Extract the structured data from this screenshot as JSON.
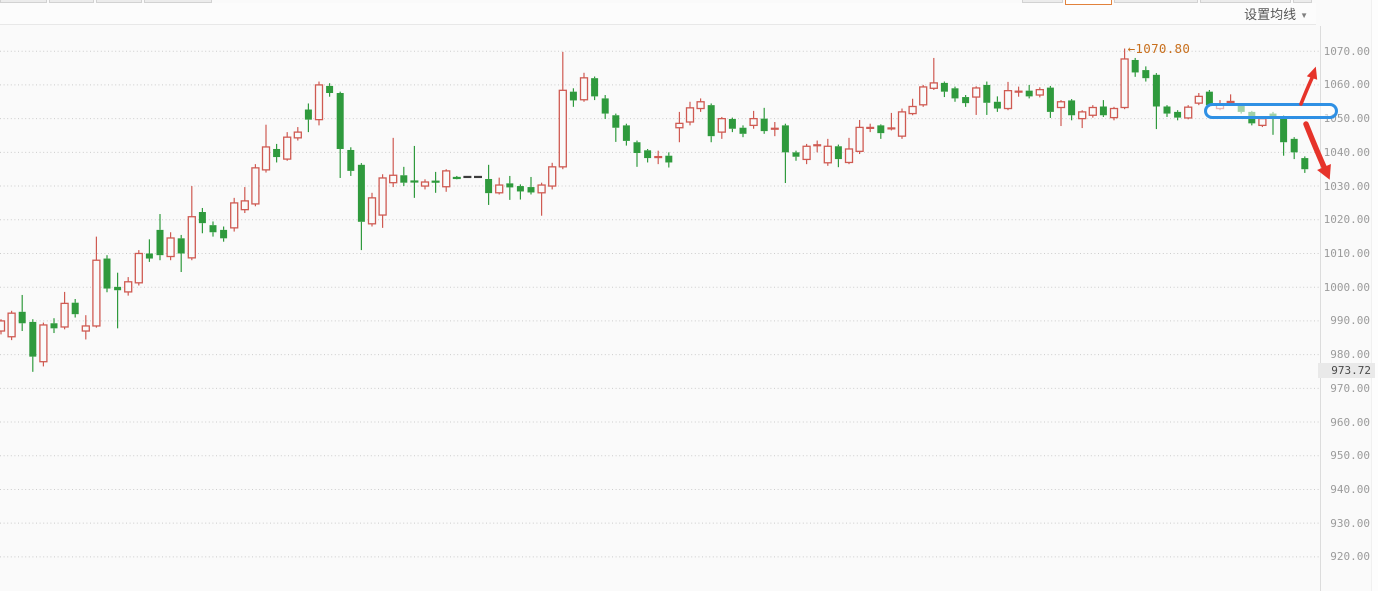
{
  "header": {
    "ma_settings_label": "设置均线",
    "dropdown_caret": "▼"
  },
  "y_axis": {
    "ticks": [
      {
        "value": 1070,
        "label": "1070.00"
      },
      {
        "value": 1060,
        "label": "1060.00"
      },
      {
        "value": 1050,
        "label": "1050.00"
      },
      {
        "value": 1040,
        "label": "1040.00"
      },
      {
        "value": 1030,
        "label": "1030.00"
      },
      {
        "value": 1020,
        "label": "1020.00"
      },
      {
        "value": 1010,
        "label": "1010.00"
      },
      {
        "value": 1000,
        "label": "1000.00"
      },
      {
        "value": 990,
        "label": "990.00"
      },
      {
        "value": 980,
        "label": "980.00"
      },
      {
        "value": 970,
        "label": "970.00"
      },
      {
        "value": 960,
        "label": "960.00"
      },
      {
        "value": 950,
        "label": "950.00"
      },
      {
        "value": 940,
        "label": "940.00"
      },
      {
        "value": 930,
        "label": "930.00"
      },
      {
        "value": 920,
        "label": "920.00"
      }
    ],
    "current_price_badge": {
      "value": 973.72,
      "label": "973.72"
    }
  },
  "annotations": {
    "peak_callout": {
      "arrow": "←",
      "label": "1070.80",
      "value": 1070.8
    },
    "highlight_oval": {
      "shape": "rounded-pill",
      "color": "#2f90e4"
    },
    "trend_arrow_up": {
      "direction": "up-right",
      "color": "#e6332a"
    },
    "trend_arrow_down": {
      "direction": "down-right",
      "color": "#e6332a"
    }
  },
  "colors": {
    "background": "#fafafa",
    "up_candle": "#cf5a52",
    "down_candle": "#2f9a3d",
    "flat_candle_dark": "#3c3c3c",
    "gridline": "#cccccc",
    "axis_text": "#9b9b9b",
    "axis_line": "#dcdcdc",
    "annotation_orange": "#c8701e",
    "arrow_red": "#e6332a",
    "highlight_blue": "#2f90e4",
    "badge_bg": "#e9e9e9",
    "badge_text": "#4a4a4a",
    "active_tab_orange": "#e2823c"
  },
  "chart_data": {
    "type": "candlestick",
    "title": "",
    "ylabel": "",
    "ylim": [
      915,
      1078
    ],
    "y_tick_step": 10,
    "grid": "horizontal-dotted",
    "legend": "none",
    "ohlc_order": [
      "open",
      "high",
      "low",
      "close"
    ],
    "flat_dark_indices": [
      44,
      45
    ],
    "annotated_high": {
      "index": 106,
      "value": 1070.8
    },
    "candles": [
      [
        987,
        990.5,
        986,
        990
      ],
      [
        985.3,
        993,
        984.3,
        992.3
      ],
      [
        992.7,
        997.7,
        987,
        989.3
      ],
      [
        989.7,
        990.5,
        974.9,
        979.4
      ],
      [
        977.9,
        989.5,
        976.5,
        988.8
      ],
      [
        989.3,
        990.8,
        986.4,
        987.8
      ],
      [
        988.2,
        998.6,
        987.5,
        995.2
      ],
      [
        995.4,
        996.5,
        991,
        992
      ],
      [
        987,
        991.7,
        984.5,
        988.5
      ],
      [
        988.5,
        1015,
        988,
        1008
      ],
      [
        1008.5,
        1009.5,
        998.5,
        999.6
      ],
      [
        1000.1,
        1004.3,
        987.8,
        999.1
      ],
      [
        998.6,
        1003,
        997.5,
        1001.6
      ],
      [
        1001.3,
        1011,
        1000.5,
        1010
      ],
      [
        1010,
        1014.2,
        1007.5,
        1008.5
      ],
      [
        1017,
        1021.7,
        1008,
        1009.5
      ],
      [
        1009.1,
        1016.3,
        1008,
        1014.6
      ],
      [
        1014.5,
        1015.5,
        1004.5,
        1010
      ],
      [
        1008.7,
        1030,
        1008,
        1020.9
      ],
      [
        1022.3,
        1023.5,
        1016,
        1019
      ],
      [
        1018.4,
        1019.5,
        1015,
        1016.3
      ],
      [
        1017,
        1018,
        1013.5,
        1014.5
      ],
      [
        1017.6,
        1026.5,
        1016.5,
        1025
      ],
      [
        1023,
        1029.7,
        1022,
        1025.6
      ],
      [
        1024.7,
        1036.5,
        1024,
        1035.4
      ],
      [
        1034.8,
        1048.2,
        1034,
        1041.6
      ],
      [
        1041,
        1042.5,
        1037,
        1038.6
      ],
      [
        1038,
        1046,
        1037.5,
        1044.5
      ],
      [
        1044.3,
        1047.5,
        1043.5,
        1046
      ],
      [
        1052.7,
        1054.5,
        1046,
        1049.7
      ],
      [
        1049.7,
        1061,
        1048,
        1060
      ],
      [
        1059.7,
        1060.5,
        1056.5,
        1057.6
      ],
      [
        1057.6,
        1058,
        1032.4,
        1041
      ],
      [
        1040.7,
        1041.5,
        1033,
        1034.5
      ],
      [
        1036.3,
        1036.8,
        1011,
        1019.4
      ],
      [
        1018.8,
        1028,
        1018,
        1026.5
      ],
      [
        1021.4,
        1033.5,
        1017.6,
        1032.4
      ],
      [
        1031,
        1044.3,
        1029.7,
        1033.2
      ],
      [
        1033.2,
        1035.7,
        1030,
        1031
      ],
      [
        1031.5,
        1041.9,
        1026.5,
        1031.2
      ],
      [
        1030,
        1032,
        1029,
        1031.2
      ],
      [
        1031.4,
        1034.2,
        1028,
        1031.2
      ],
      [
        1029.8,
        1035,
        1028.3,
        1034.5
      ],
      [
        1032.6,
        1033,
        1032,
        1032.2
      ],
      [
        1032.7,
        1032.7,
        1032.7,
        1032.7
      ],
      [
        1032.7,
        1032.7,
        1032.7,
        1032.7
      ],
      [
        1032.1,
        1036.3,
        1024.4,
        1027.9
      ],
      [
        1028,
        1032.5,
        1027.5,
        1030.3
      ],
      [
        1030.8,
        1033,
        1025.9,
        1029.6
      ],
      [
        1030,
        1030.5,
        1026,
        1028.4
      ],
      [
        1029.7,
        1032.7,
        1027.5,
        1028.1
      ],
      [
        1028,
        1031,
        1021.2,
        1030.3
      ],
      [
        1030,
        1036.9,
        1029,
        1035.7
      ],
      [
        1035.7,
        1069.8,
        1035,
        1058.4
      ],
      [
        1058,
        1059,
        1053.5,
        1055.4
      ],
      [
        1055.6,
        1063.6,
        1055,
        1062.1
      ],
      [
        1062,
        1062.5,
        1055.5,
        1056.6
      ],
      [
        1056,
        1057,
        1049.9,
        1051.5
      ],
      [
        1051,
        1051.5,
        1043.1,
        1047.3
      ],
      [
        1048,
        1048.5,
        1042,
        1043.4
      ],
      [
        1043,
        1043.5,
        1035.7,
        1039.8
      ],
      [
        1040.6,
        1041,
        1037,
        1038.3
      ],
      [
        1038.4,
        1040.5,
        1036.5,
        1038.8
      ],
      [
        1039,
        1040,
        1035.5,
        1037
      ],
      [
        1047.3,
        1052,
        1043,
        1048.6
      ],
      [
        1049,
        1055,
        1048,
        1053.2
      ],
      [
        1053,
        1056,
        1052,
        1055
      ],
      [
        1054,
        1054.5,
        1043,
        1044.8
      ],
      [
        1046,
        1050.5,
        1044,
        1050
      ],
      [
        1049.9,
        1050.3,
        1046,
        1047
      ],
      [
        1047.3,
        1048,
        1044.5,
        1045.5
      ],
      [
        1048,
        1052.3,
        1047,
        1050
      ],
      [
        1050,
        1053.2,
        1045.5,
        1046.3
      ],
      [
        1046.8,
        1049,
        1044.8,
        1047.2
      ],
      [
        1048,
        1048.5,
        1030.9,
        1040
      ],
      [
        1040,
        1040.5,
        1037.5,
        1038.7
      ],
      [
        1037.9,
        1042.5,
        1036.5,
        1041.8
      ],
      [
        1041.9,
        1043.5,
        1040,
        1042.3
      ],
      [
        1036.9,
        1044,
        1036,
        1041.8
      ],
      [
        1041.8,
        1042.3,
        1035.6,
        1038
      ],
      [
        1037,
        1044.3,
        1036.5,
        1041
      ],
      [
        1040.3,
        1049.6,
        1039.5,
        1047.4
      ],
      [
        1047,
        1048.5,
        1046,
        1047.5
      ],
      [
        1048,
        1048.3,
        1044,
        1045.7
      ],
      [
        1047,
        1051.7,
        1046.5,
        1047.2
      ],
      [
        1044.8,
        1053,
        1044,
        1052
      ],
      [
        1051.5,
        1055.9,
        1051,
        1053.6
      ],
      [
        1054.1,
        1060,
        1053.5,
        1059.4
      ],
      [
        1059,
        1068,
        1058.5,
        1060.6
      ],
      [
        1060.6,
        1061,
        1056.4,
        1058
      ],
      [
        1059,
        1059.5,
        1055,
        1056
      ],
      [
        1056.4,
        1057,
        1053.5,
        1054.6
      ],
      [
        1056.4,
        1059.6,
        1051.1,
        1059.1
      ],
      [
        1060,
        1061,
        1051.1,
        1054.7
      ],
      [
        1055,
        1056.6,
        1052,
        1053
      ],
      [
        1053,
        1060.9,
        1052.5,
        1058.3
      ],
      [
        1057.8,
        1059.5,
        1056.5,
        1058.2
      ],
      [
        1058.3,
        1060,
        1056,
        1056.6
      ],
      [
        1057,
        1059.3,
        1056.3,
        1058.6
      ],
      [
        1059.2,
        1059.7,
        1050.2,
        1052
      ],
      [
        1053.3,
        1055.5,
        1047.8,
        1055
      ],
      [
        1055.4,
        1055.8,
        1049.5,
        1051
      ],
      [
        1050,
        1052.5,
        1047.2,
        1052
      ],
      [
        1051,
        1054,
        1050.3,
        1053.3
      ],
      [
        1053.6,
        1055.5,
        1050.5,
        1051
      ],
      [
        1050.3,
        1053.5,
        1049.5,
        1053
      ],
      [
        1053.3,
        1070.8,
        1052.8,
        1067.7
      ],
      [
        1067.4,
        1068,
        1062.4,
        1063.7
      ],
      [
        1064.4,
        1065.5,
        1061,
        1062
      ],
      [
        1063,
        1063.5,
        1046.9,
        1053.6
      ],
      [
        1053.6,
        1054,
        1050.5,
        1051.5
      ],
      [
        1052,
        1052.5,
        1049.5,
        1050.3
      ],
      [
        1050.2,
        1054,
        1049.8,
        1053.4
      ],
      [
        1054.6,
        1057.6,
        1054,
        1056.6
      ],
      [
        1058,
        1058.5,
        1053.5,
        1054
      ],
      [
        1053,
        1055.5,
        1052.5,
        1054
      ],
      [
        1054.8,
        1057.2,
        1054,
        1055.1
      ],
      [
        1054,
        1054.5,
        1051.5,
        1052
      ],
      [
        1052,
        1052.3,
        1048,
        1048.6
      ],
      [
        1048,
        1050.5,
        1047.5,
        1050
      ],
      [
        1051.5,
        1052,
        1045.2,
        1050.3
      ],
      [
        1050.6,
        1051,
        1039,
        1043
      ],
      [
        1044,
        1044.5,
        1038,
        1040
      ],
      [
        1038.3,
        1038.8,
        1033.9,
        1035
      ]
    ]
  }
}
